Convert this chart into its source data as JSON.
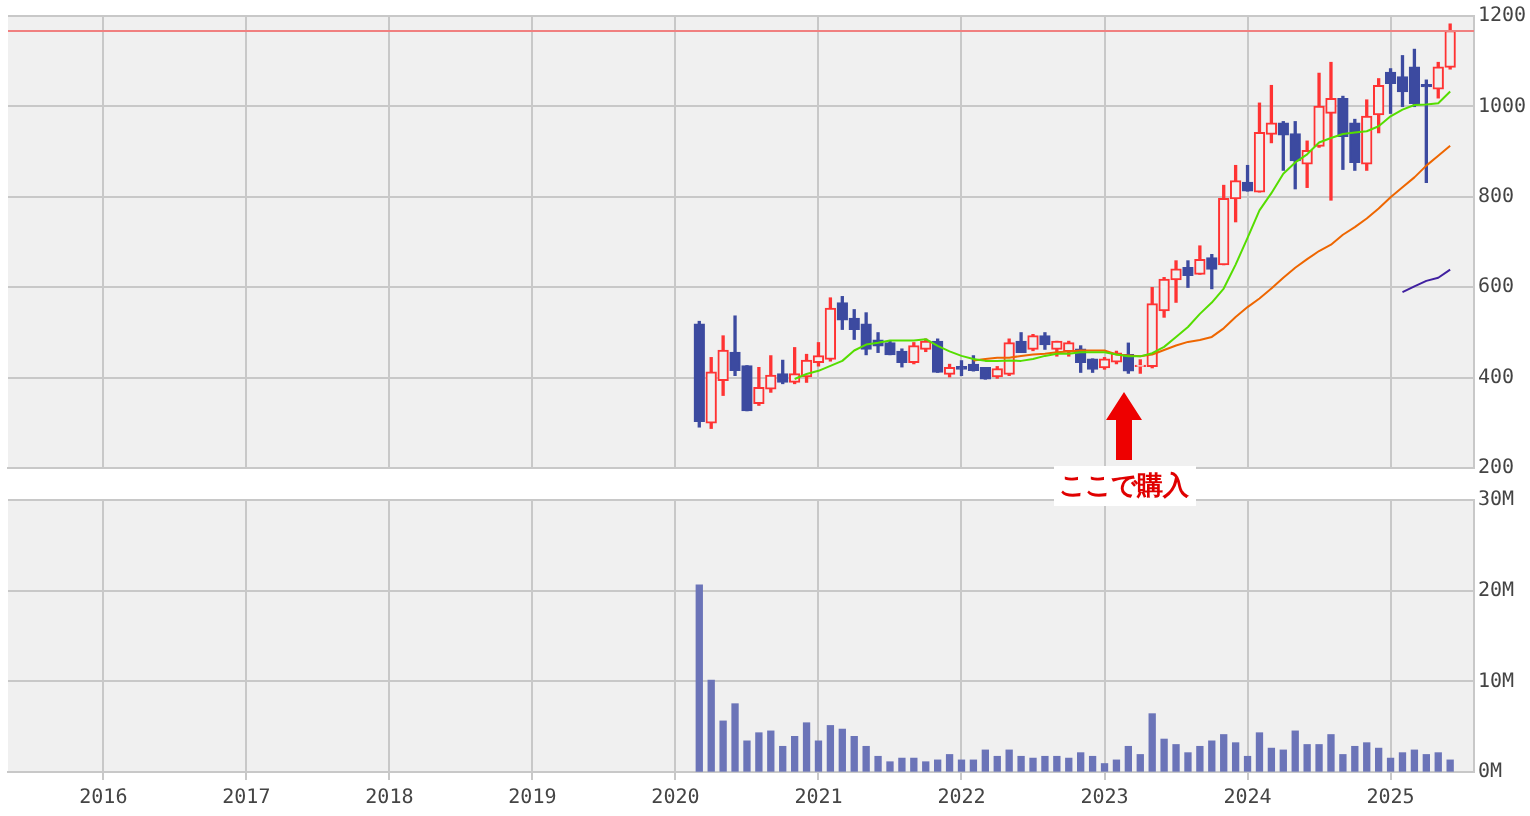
{
  "chart_data": [
    {
      "type": "candlestick",
      "tick_labels": "y",
      "grid": true,
      "x": [
        "2020-03",
        "2020-04",
        "2020-05",
        "2020-06",
        "2020-07",
        "2020-08",
        "2020-09",
        "2020-10",
        "2020-11",
        "2020-12",
        "2021-01",
        "2021-02",
        "2021-03",
        "2021-04",
        "2021-05",
        "2021-06",
        "2021-07",
        "2021-08",
        "2021-09",
        "2021-10",
        "2021-11",
        "2021-12",
        "2022-01",
        "2022-02",
        "2022-03",
        "2022-04",
        "2022-05",
        "2022-06",
        "2022-07",
        "2022-08",
        "2022-09",
        "2022-10",
        "2022-11",
        "2022-12",
        "2023-01",
        "2023-02",
        "2023-03",
        "2023-04",
        "2023-05",
        "2023-06",
        "2023-07",
        "2023-08",
        "2023-09",
        "2023-10",
        "2023-11",
        "2023-12",
        "2024-01",
        "2024-02",
        "2024-03",
        "2024-04",
        "2024-05",
        "2024-06",
        "2024-07",
        "2024-08",
        "2024-09",
        "2024-10",
        "2024-11",
        "2024-12",
        "2025-01",
        "2025-02",
        "2025-03",
        "2025-04",
        "2025-05",
        "2025-06"
      ],
      "ohlc": [
        [
          518,
          524,
          291,
          303
        ],
        [
          300,
          444,
          288,
          412
        ],
        [
          394,
          492,
          361,
          460
        ],
        [
          456,
          536,
          405,
          416
        ],
        [
          426,
          426,
          327,
          327
        ],
        [
          343,
          422,
          339,
          378
        ],
        [
          375,
          448,
          368,
          405
        ],
        [
          408,
          438,
          387,
          390
        ],
        [
          390,
          466,
          387,
          408
        ],
        [
          402,
          451,
          390,
          438
        ],
        [
          434,
          477,
          426,
          448
        ],
        [
          441,
          576,
          437,
          553
        ],
        [
          565,
          579,
          507,
          528
        ],
        [
          531,
          550,
          485,
          507
        ],
        [
          518,
          543,
          451,
          463
        ],
        [
          483,
          499,
          456,
          470
        ],
        [
          477,
          480,
          451,
          451
        ],
        [
          458,
          463,
          424,
          434
        ],
        [
          434,
          477,
          431,
          470
        ],
        [
          463,
          485,
          458,
          480
        ],
        [
          480,
          485,
          412,
          412
        ],
        [
          408,
          429,
          402,
          422
        ],
        [
          424,
          437,
          405,
          419
        ],
        [
          429,
          448,
          415,
          416
        ],
        [
          422,
          422,
          397,
          397
        ],
        [
          402,
          424,
          399,
          419
        ],
        [
          408,
          485,
          405,
          477
        ],
        [
          480,
          499,
          456,
          456
        ],
        [
          463,
          495,
          460,
          492
        ],
        [
          492,
          499,
          463,
          473
        ],
        [
          463,
          480,
          448,
          480
        ],
        [
          458,
          480,
          448,
          477
        ],
        [
          463,
          470,
          412,
          434
        ],
        [
          441,
          441,
          412,
          419
        ],
        [
          422,
          444,
          419,
          441
        ],
        [
          435,
          458,
          431,
          454
        ],
        [
          451,
          476,
          410,
          415
        ],
        [
          425,
          439,
          410,
          427
        ],
        [
          425,
          599,
          422,
          563
        ],
        [
          548,
          621,
          534,
          617
        ],
        [
          617,
          658,
          567,
          640
        ],
        [
          643,
          658,
          600,
          626
        ],
        [
          629,
          691,
          629,
          661
        ],
        [
          665,
          672,
          597,
          640
        ],
        [
          650,
          825,
          650,
          796
        ],
        [
          796,
          869,
          745,
          835
        ],
        [
          832,
          869,
          813,
          813
        ],
        [
          811,
          1007,
          811,
          942
        ],
        [
          939,
          1046,
          920,
          963
        ],
        [
          963,
          966,
          859,
          937
        ],
        [
          939,
          966,
          818,
          880
        ],
        [
          873,
          923,
          821,
          902
        ],
        [
          912,
          1073,
          910,
          1000
        ],
        [
          985,
          1097,
          793,
          1017
        ],
        [
          1017,
          1022,
          861,
          934
        ],
        [
          963,
          971,
          859,
          876
        ],
        [
          873,
          1014,
          859,
          978
        ],
        [
          982,
          1061,
          942,
          1046
        ],
        [
          1075,
          1083,
          985,
          1051
        ],
        [
          1065,
          1112,
          1000,
          1033
        ],
        [
          1087,
          1126,
          1000,
          1007
        ],
        [
          1048,
          1058,
          832,
          1044
        ],
        [
          1039,
          1097,
          1019,
          1087
        ],
        [
          1087,
          1182,
          1083,
          1167
        ]
      ],
      "colors": [
        "#3c4aa0",
        "#ff3333",
        "#ff3333",
        "#3c4aa0",
        "#3c4aa0",
        "#ff3333",
        "#ff3333",
        "#3c4aa0",
        "#ff3333",
        "#ff3333",
        "#ff3333",
        "#ff3333",
        "#3c4aa0",
        "#3c4aa0",
        "#3c4aa0",
        "#3c4aa0",
        "#3c4aa0",
        "#3c4aa0",
        "#ff3333",
        "#ff3333",
        "#3c4aa0",
        "#ff3333",
        "#3c4aa0",
        "#3c4aa0",
        "#3c4aa0",
        "#ff3333",
        "#ff3333",
        "#3c4aa0",
        "#ff3333",
        "#3c4aa0",
        "#ff3333",
        "#ff3333",
        "#3c4aa0",
        "#3c4aa0",
        "#ff3333",
        "#ff3333",
        "#3c4aa0",
        "#ff3333",
        "#ff3333",
        "#ff3333",
        "#ff3333",
        "#3c4aa0",
        "#ff3333",
        "#3c4aa0",
        "#ff3333",
        "#ff3333",
        "#3c4aa0",
        "#ff3333",
        "#ff3333",
        "#3c4aa0",
        "#3c4aa0",
        "#ff3333",
        "#ff3333",
        "#ff3333",
        "#3c4aa0",
        "#3c4aa0",
        "#ff3333",
        "#ff3333",
        "#3c4aa0",
        "#3c4aa0",
        "#3c4aa0",
        "#3c4aa0",
        "#ff3333",
        "#ff3333"
      ],
      "series": [
        {
          "type": "line",
          "color": "#55dd00",
          "x": [
            "2020-11",
            "2020-12",
            "2021-01",
            "2021-02",
            "2021-03",
            "2021-04",
            "2021-05",
            "2021-06",
            "2021-07",
            "2021-08",
            "2021-09",
            "2021-10",
            "2021-11",
            "2021-12",
            "2022-01",
            "2022-02",
            "2022-03",
            "2022-04",
            "2022-05",
            "2022-06",
            "2022-07",
            "2022-08",
            "2022-09",
            "2022-10",
            "2022-11",
            "2022-12",
            "2023-01",
            "2023-02",
            "2023-03",
            "2023-04",
            "2023-05",
            "2023-06",
            "2023-07",
            "2023-08",
            "2023-09",
            "2023-10",
            "2023-11",
            "2023-12",
            "2024-01",
            "2024-02",
            "2024-03",
            "2024-04",
            "2024-05",
            "2024-06",
            "2024-07",
            "2024-08",
            "2024-09",
            "2024-10",
            "2024-11",
            "2024-12",
            "2025-01",
            "2025-02",
            "2025-03",
            "2025-04",
            "2025-05",
            "2025-06"
          ],
          "values": [
            397,
            408,
            415,
            426,
            437,
            460,
            473,
            477,
            482,
            482,
            482,
            485,
            470,
            458,
            448,
            441,
            437,
            437,
            438,
            437,
            441,
            448,
            453,
            453,
            456,
            456,
            456,
            451,
            447,
            447,
            454,
            468,
            490,
            512,
            541,
            566,
            597,
            650,
            709,
            770,
            808,
            851,
            876,
            894,
            920,
            930,
            939,
            942,
            945,
            956,
            978,
            993,
            1003,
            1004,
            1007,
            1033
          ]
        },
        {
          "type": "line",
          "color": "#ee6600",
          "x": [
            "2022-02",
            "2022-03",
            "2022-04",
            "2022-05",
            "2022-06",
            "2022-07",
            "2022-08",
            "2022-09",
            "2022-10",
            "2022-11",
            "2022-12",
            "2023-01",
            "2023-02",
            "2023-03",
            "2023-04",
            "2023-05",
            "2023-06",
            "2023-07",
            "2023-08",
            "2023-09",
            "2023-10",
            "2023-11",
            "2023-12",
            "2024-01",
            "2024-02",
            "2024-03",
            "2024-04",
            "2024-05",
            "2024-06",
            "2024-07",
            "2024-08",
            "2024-09",
            "2024-10",
            "2024-11",
            "2024-12",
            "2025-01",
            "2025-02",
            "2025-03",
            "2025-04",
            "2025-05",
            "2025-06"
          ],
          "values": [
            438,
            441,
            444,
            444,
            448,
            451,
            453,
            456,
            458,
            460,
            460,
            460,
            451,
            449,
            447,
            451,
            461,
            471,
            479,
            483,
            490,
            509,
            534,
            556,
            575,
            597,
            621,
            643,
            662,
            680,
            694,
            716,
            733,
            752,
            774,
            799,
            821,
            843,
            869,
            891,
            913
          ]
        },
        {
          "type": "line",
          "color": "#4020a0",
          "x": [
            "2025-02",
            "2025-03",
            "2025-04",
            "2025-05",
            "2025-06"
          ],
          "values": [
            589,
            602,
            614,
            621,
            639
          ]
        }
      ],
      "ref_lines": [
        {
          "axis": "y",
          "value": 1167,
          "color": "#f08080"
        }
      ],
      "annotations": [
        "ここで購入"
      ],
      "xlim": [
        "2015-05",
        "2025-08"
      ],
      "xticks": [
        "2016",
        "2017",
        "2018",
        "2019",
        "2020",
        "2021",
        "2022",
        "2023",
        "2024",
        "2025"
      ],
      "ylim": [
        200,
        1200
      ],
      "yticks": [
        200,
        400,
        600,
        800,
        1000,
        1200
      ]
    },
    {
      "type": "bar",
      "grid": true,
      "color": "#6b74b8",
      "x": [
        "2020-03",
        "2020-04",
        "2020-05",
        "2020-06",
        "2020-07",
        "2020-08",
        "2020-09",
        "2020-10",
        "2020-11",
        "2020-12",
        "2021-01",
        "2021-02",
        "2021-03",
        "2021-04",
        "2021-05",
        "2021-06",
        "2021-07",
        "2021-08",
        "2021-09",
        "2021-10",
        "2021-11",
        "2021-12",
        "2022-01",
        "2022-02",
        "2022-03",
        "2022-04",
        "2022-05",
        "2022-06",
        "2022-07",
        "2022-08",
        "2022-09",
        "2022-10",
        "2022-11",
        "2022-12",
        "2023-01",
        "2023-02",
        "2023-03",
        "2023-04",
        "2023-05",
        "2023-06",
        "2023-07",
        "2023-08",
        "2023-09",
        "2023-10",
        "2023-11",
        "2023-12",
        "2024-01",
        "2024-02",
        "2024-03",
        "2024-04",
        "2024-05",
        "2024-06",
        "2024-07",
        "2024-08",
        "2024-09",
        "2024-10",
        "2024-11",
        "2024-12",
        "2025-01",
        "2025-02",
        "2025-03",
        "2025-04",
        "2025-05",
        "2025-06"
      ],
      "values": [
        20.6,
        10.1,
        5.6,
        7.5,
        3.4,
        4.3,
        4.5,
        2.8,
        3.9,
        5.4,
        3.4,
        5.1,
        4.7,
        3.9,
        2.8,
        1.7,
        1.1,
        1.5,
        1.5,
        1.1,
        1.3,
        1.9,
        1.3,
        1.3,
        2.4,
        1.7,
        2.4,
        1.7,
        1.5,
        1.7,
        1.7,
        1.5,
        2.1,
        1.7,
        0.9,
        1.3,
        2.8,
        1.9,
        6.4,
        3.6,
        3.0,
        2.1,
        2.8,
        3.4,
        4.1,
        3.2,
        1.7,
        4.3,
        2.6,
        2.4,
        4.5,
        3.0,
        3.0,
        4.1,
        1.9,
        2.8,
        3.2,
        2.6,
        1.5,
        2.1,
        2.4,
        1.9,
        2.1,
        1.3
      ],
      "xlim": [
        "2015-05",
        "2025-08"
      ],
      "xticks": [
        "2016",
        "2017",
        "2018",
        "2019",
        "2020",
        "2021",
        "2022",
        "2023",
        "2024",
        "2025"
      ],
      "ylim": [
        0,
        30
      ],
      "yticks": [
        {
          "value": 0,
          "label": "0M"
        },
        {
          "value": 10,
          "label": "10M"
        },
        {
          "value": 20,
          "label": "20M"
        },
        {
          "value": 30,
          "label": "30M"
        }
      ]
    }
  ]
}
